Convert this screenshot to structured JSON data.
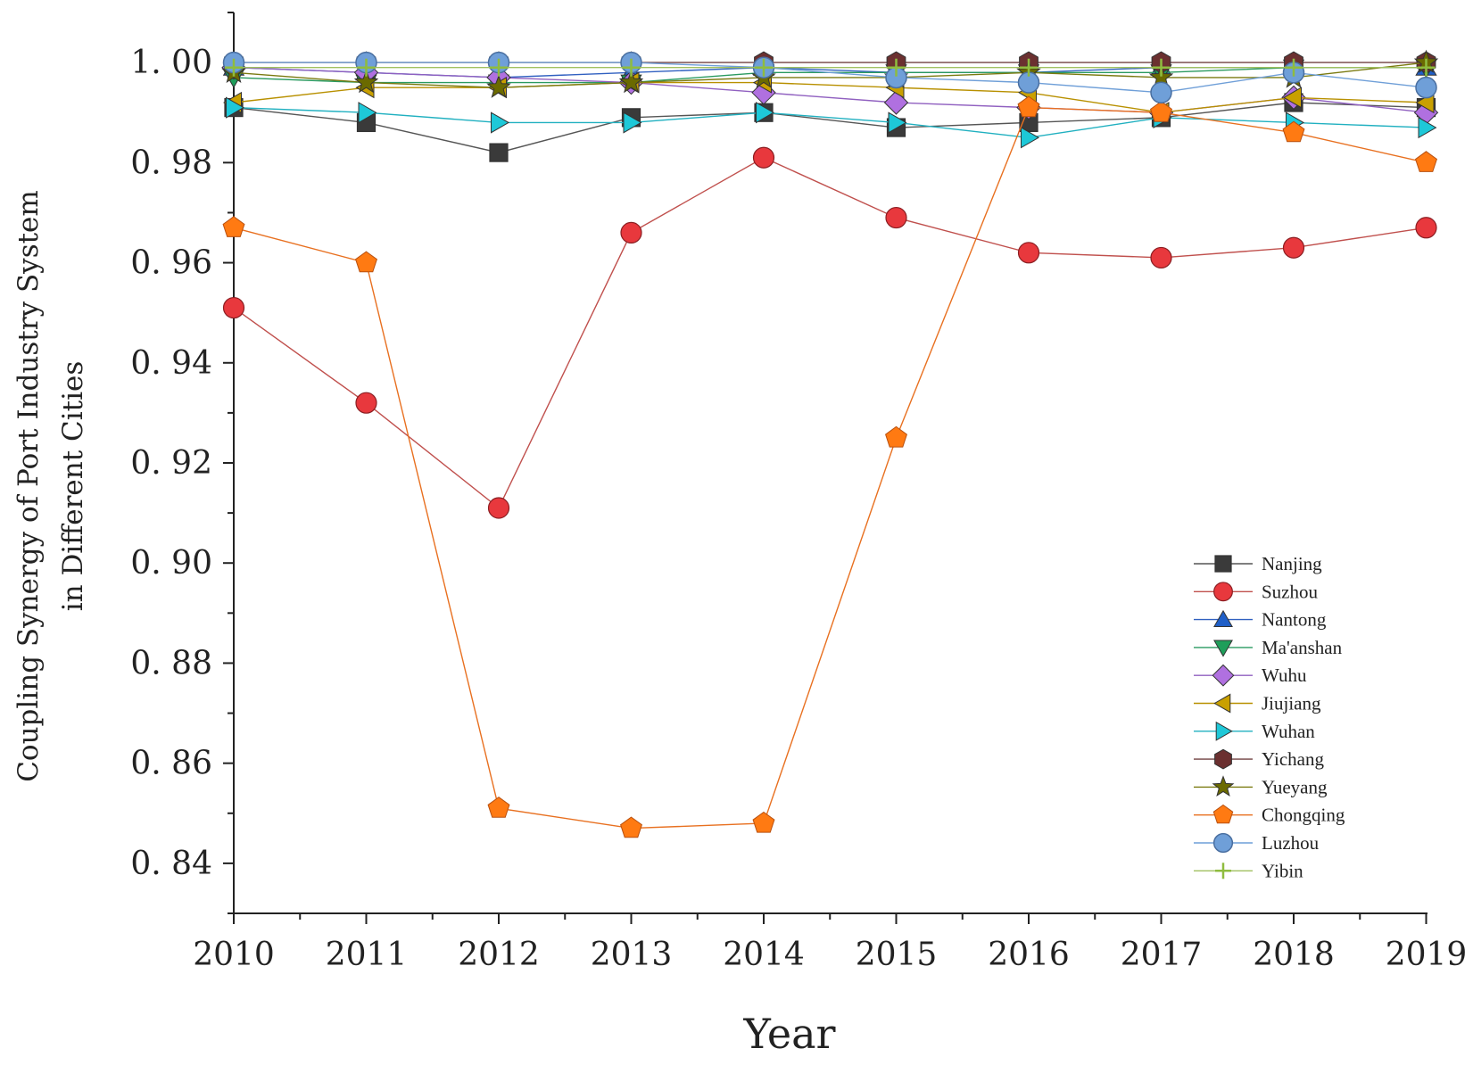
{
  "chart_data": {
    "type": "line",
    "title": "",
    "xlabel": "Year",
    "ylabel_lines": [
      "Coupling Synergy of Port Industry System",
      "in Different Cities"
    ],
    "x": [
      "2010",
      "2011",
      "2012",
      "2013",
      "2014",
      "2015",
      "2016",
      "2017",
      "2018",
      "2019"
    ],
    "ylim": [
      0.83,
      1.01
    ],
    "yticks": [
      0.84,
      0.86,
      0.88,
      0.9,
      0.92,
      0.94,
      0.96,
      0.98,
      1.0
    ],
    "ytick_labels": [
      "0. 84",
      "0. 86",
      "0. 88",
      "0. 90",
      "0. 92",
      "0. 94",
      "0. 96",
      "0. 98",
      "1. 00"
    ],
    "grid": false,
    "legend_position": "bottom-right",
    "series": [
      {
        "name": "Nanjing",
        "marker": "square",
        "color": "#3a3a3a",
        "line_color": "#555555",
        "values": [
          0.991,
          0.988,
          0.982,
          0.989,
          0.99,
          0.987,
          0.988,
          0.989,
          0.992,
          0.991
        ]
      },
      {
        "name": "Suzhou",
        "marker": "circle",
        "color": "#e8383d",
        "line_color": "#c0504d",
        "values": [
          0.951,
          0.932,
          0.911,
          0.966,
          0.981,
          0.969,
          0.962,
          0.961,
          0.963,
          0.967
        ]
      },
      {
        "name": "Nantong",
        "marker": "triangle-up",
        "color": "#1f5fc8",
        "line_color": "#3060c0",
        "values": [
          0.999,
          0.998,
          0.997,
          0.998,
          0.999,
          0.998,
          0.998,
          0.999,
          0.999,
          0.999
        ]
      },
      {
        "name": "Ma'anshan",
        "marker": "triangle-down",
        "color": "#1e9e5a",
        "line_color": "#2a9a60",
        "values": [
          0.997,
          0.996,
          0.996,
          0.996,
          0.998,
          0.998,
          0.998,
          0.998,
          0.999,
          0.999
        ]
      },
      {
        "name": "Wuhu",
        "marker": "diamond",
        "color": "#b070e0",
        "line_color": "#9060c0",
        "values": [
          0.999,
          0.998,
          0.997,
          0.996,
          0.994,
          0.992,
          0.991,
          0.99,
          0.993,
          0.99
        ]
      },
      {
        "name": "Jiujiang",
        "marker": "triangle-left",
        "color": "#c9a000",
        "line_color": "#b89000",
        "values": [
          0.992,
          0.995,
          0.995,
          0.996,
          0.996,
          0.995,
          0.994,
          0.99,
          0.993,
          0.992
        ]
      },
      {
        "name": "Wuhan",
        "marker": "triangle-right",
        "color": "#1ec8d8",
        "line_color": "#20b0c0",
        "values": [
          0.991,
          0.99,
          0.988,
          0.988,
          0.99,
          0.988,
          0.985,
          0.989,
          0.988,
          0.987
        ]
      },
      {
        "name": "Yichang",
        "marker": "hexagon",
        "color": "#6b3030",
        "line_color": "#704040",
        "values": [
          1.0,
          1.0,
          1.0,
          1.0,
          1.0,
          1.0,
          1.0,
          1.0,
          1.0,
          1.0
        ]
      },
      {
        "name": "Yueyang",
        "marker": "star",
        "color": "#6b6a00",
        "line_color": "#7a7a10",
        "values": [
          0.998,
          0.996,
          0.995,
          0.996,
          0.997,
          0.997,
          0.998,
          0.997,
          0.997,
          1.0
        ]
      },
      {
        "name": "Chongqing",
        "marker": "pentagon",
        "color": "#ff7a12",
        "line_color": "#e87020",
        "values": [
          0.967,
          0.96,
          0.851,
          0.847,
          0.848,
          0.925,
          0.991,
          0.99,
          0.986,
          0.98
        ]
      },
      {
        "name": "Luzhou",
        "marker": "circle-blue",
        "color": "#6f9fd8",
        "line_color": "#6f9fd8",
        "values": [
          1.0,
          1.0,
          1.0,
          1.0,
          0.999,
          0.997,
          0.996,
          0.994,
          0.998,
          0.995
        ]
      },
      {
        "name": "Yibin",
        "marker": "plus",
        "color": "#8fbc3f",
        "line_color": "#a0c060",
        "values": [
          0.999,
          0.999,
          0.999,
          0.999,
          0.999,
          0.999,
          0.999,
          0.999,
          0.999,
          0.999
        ]
      }
    ]
  }
}
